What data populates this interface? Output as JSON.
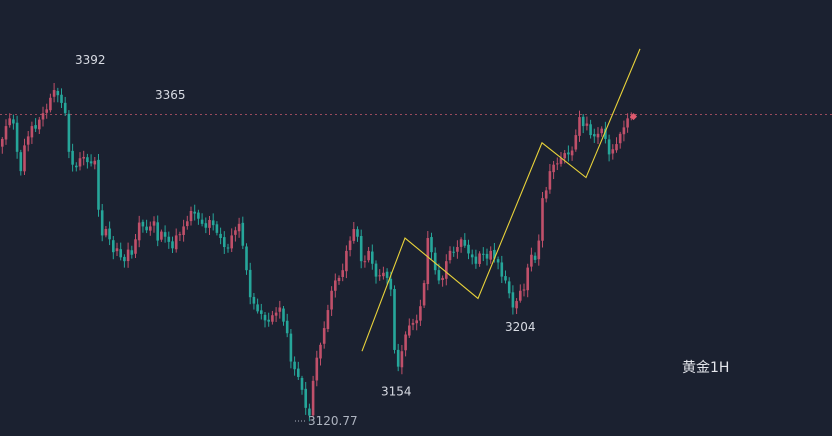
{
  "chart_data": {
    "type": "candlestick",
    "symbol": "黄金1H",
    "colors": {
      "background": "#1b2130",
      "up": "#c0506a",
      "down": "#26a69a",
      "wave": "#e8d23a",
      "ref_line": "#9a4a5c"
    },
    "reference_level": 3359,
    "ylim": [
      3113,
      3448
    ],
    "labels": [
      {
        "text": "3392",
        "x": 62,
        "price": 3392
      },
      {
        "text": "3365",
        "x": 142,
        "price": 3365
      },
      {
        "text": "3154",
        "x": 368,
        "price": 3154
      },
      {
        "text": "3204",
        "x": 492,
        "price": 3204
      },
      {
        "text": "3120.77",
        "x": 292,
        "price": 3120.77
      }
    ],
    "wave_lines": [
      {
        "name": "impulse",
        "points": [
          [
            362,
            3175
          ],
          [
            405,
            3263
          ],
          [
            478,
            3216
          ],
          [
            542,
            3337
          ],
          [
            586,
            3310
          ],
          [
            640,
            3410
          ]
        ]
      }
    ],
    "closes": [
      3340,
      3350,
      3356,
      3352,
      3330,
      3315,
      3335,
      3342,
      3350,
      3348,
      3355,
      3360,
      3363,
      3372,
      3378,
      3374,
      3368,
      3360,
      3330,
      3320,
      3318,
      3325,
      3326,
      3322,
      3321,
      3323,
      3285,
      3265,
      3270,
      3262,
      3252,
      3255,
      3248,
      3245,
      3254,
      3250,
      3262,
      3275,
      3272,
      3269,
      3272,
      3276,
      3261,
      3268,
      3264,
      3260,
      3255,
      3265,
      3266,
      3272,
      3276,
      3284,
      3282,
      3278,
      3274,
      3271,
      3277,
      3273,
      3267,
      3263,
      3256,
      3255,
      3265,
      3269,
      3274,
      3257,
      3238,
      3217,
      3212,
      3206,
      3204,
      3199,
      3198,
      3203,
      3205,
      3209,
      3198,
      3189,
      3167,
      3161,
      3155,
      3145,
      3131,
      3125,
      3152,
      3170,
      3180,
      3193,
      3207,
      3222,
      3230,
      3232,
      3238,
      3253,
      3261,
      3270,
      3264,
      3245,
      3245,
      3253,
      3243,
      3233,
      3234,
      3236,
      3232,
      3223,
      3176,
      3163,
      3175,
      3188,
      3195,
      3197,
      3199,
      3210,
      3228,
      3263,
      3252,
      3238,
      3230,
      3232,
      3245,
      3253,
      3252,
      3256,
      3262,
      3257,
      3251,
      3248,
      3243,
      3251,
      3250,
      3247,
      3253,
      3247,
      3244,
      3233,
      3230,
      3220,
      3209,
      3214,
      3222,
      3223,
      3240,
      3250,
      3246,
      3261,
      3294,
      3300,
      3315,
      3320,
      3321,
      3325,
      3329,
      3328,
      3331,
      3343,
      3357,
      3350,
      3352,
      3343,
      3342,
      3344,
      3348,
      3340,
      3328,
      3332,
      3336,
      3344,
      3349,
      3356,
      3357
    ]
  }
}
